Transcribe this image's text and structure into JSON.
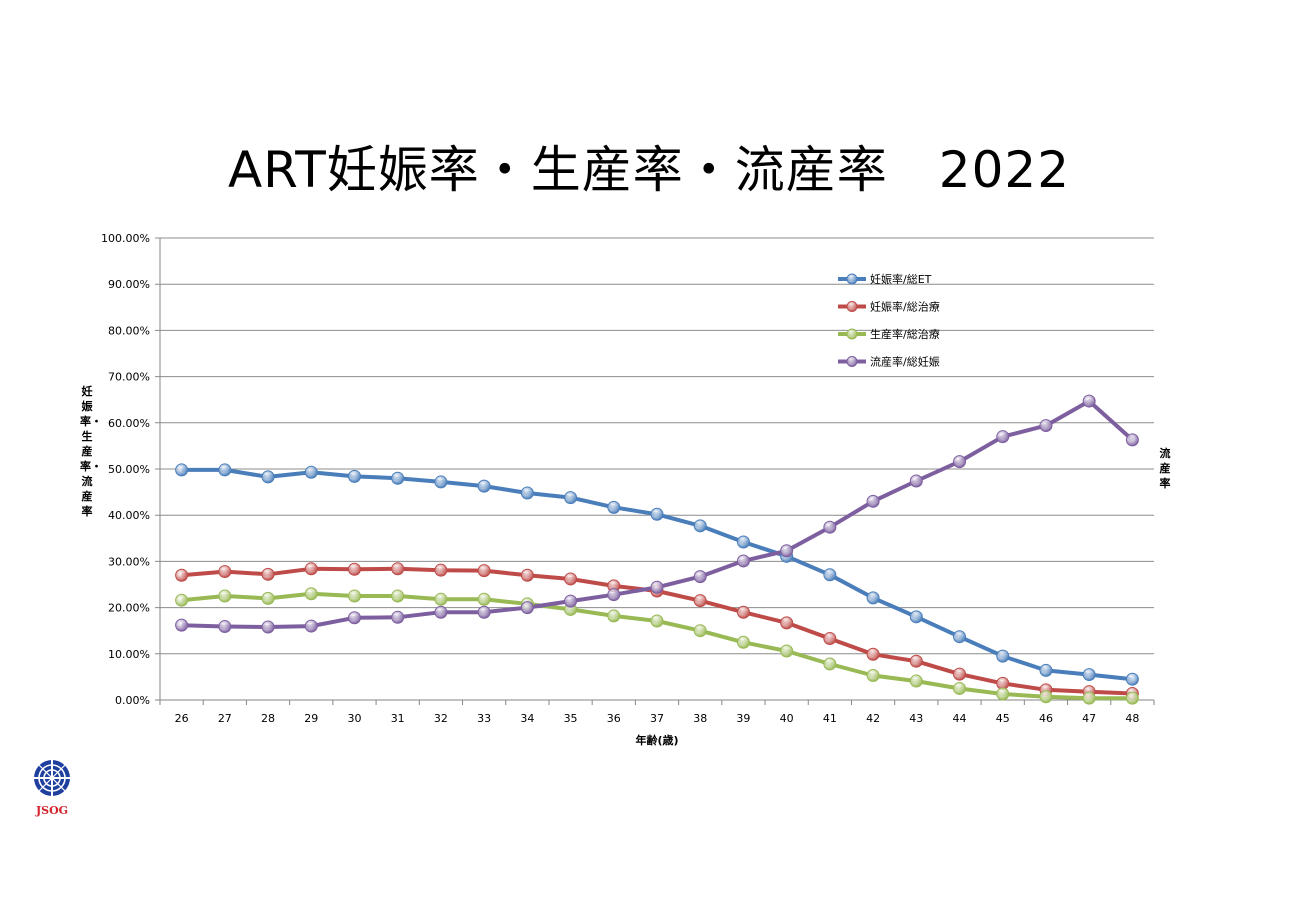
{
  "title": "ART妊娠率・生産率・流産率　2022",
  "logo_text": "JSOG",
  "chart_data": {
    "type": "line",
    "title": "ART妊娠率・生産率・流産率　2022",
    "xlabel": "年齢(歳)",
    "ylabel_left": "妊娠率・生産率・流産率",
    "ylabel_right": "流産率",
    "ylim": [
      0,
      100
    ],
    "y_ticks": [
      "0.00%",
      "10.00%",
      "20.00%",
      "30.00%",
      "40.00%",
      "50.00%",
      "60.00%",
      "70.00%",
      "80.00%",
      "90.00%",
      "100.00%"
    ],
    "grid": true,
    "legend_position": "top-right",
    "categories": [
      "26",
      "27",
      "28",
      "29",
      "30",
      "31",
      "32",
      "33",
      "34",
      "35",
      "36",
      "37",
      "38",
      "39",
      "40",
      "41",
      "42",
      "43",
      "44",
      "45",
      "46",
      "47",
      "48"
    ],
    "series": [
      {
        "name": "妊娠率/総ET",
        "color": "#4a7ebb",
        "values": [
          49.8,
          49.8,
          48.3,
          49.3,
          48.4,
          48.0,
          47.2,
          46.3,
          44.8,
          43.8,
          41.7,
          40.2,
          37.7,
          34.2,
          31.1,
          27.1,
          22.1,
          18.0,
          13.7,
          9.5,
          6.4,
          5.5,
          4.5
        ]
      },
      {
        "name": "妊娠率/総治療",
        "color": "#be4b48",
        "values": [
          27.0,
          27.8,
          27.2,
          28.4,
          28.3,
          28.4,
          28.1,
          28.0,
          27.0,
          26.2,
          24.7,
          23.6,
          21.5,
          19.0,
          16.7,
          13.3,
          9.9,
          8.4,
          5.6,
          3.6,
          2.2,
          1.8,
          1.4
        ]
      },
      {
        "name": "生産率/総治療",
        "color": "#98b954",
        "values": [
          21.6,
          22.5,
          22.0,
          23.0,
          22.5,
          22.5,
          21.8,
          21.8,
          20.8,
          19.6,
          18.2,
          17.1,
          15.0,
          12.5,
          10.6,
          7.8,
          5.3,
          4.1,
          2.5,
          1.3,
          0.7,
          0.4,
          0.4
        ]
      },
      {
        "name": "流産率/総妊娠",
        "color": "#7d5fa0",
        "values": [
          16.2,
          15.9,
          15.8,
          16.0,
          17.8,
          17.9,
          19.0,
          19.0,
          20.0,
          21.4,
          22.8,
          24.4,
          26.7,
          30.1,
          32.3,
          37.4,
          43.0,
          47.4,
          51.6,
          57.0,
          59.4,
          64.7,
          56.3
        ]
      }
    ]
  }
}
